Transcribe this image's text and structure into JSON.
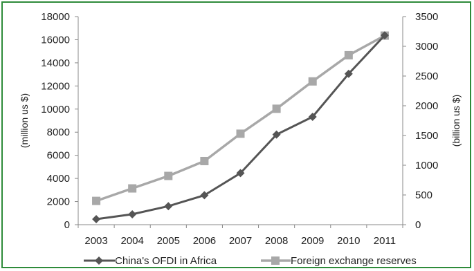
{
  "chart_data": {
    "type": "line",
    "categories": [
      "2003",
      "2004",
      "2005",
      "2006",
      "2007",
      "2008",
      "2009",
      "2010",
      "2011"
    ],
    "series": [
      {
        "name": "China's OFDI in Africa",
        "axis": "left",
        "color": "#555555",
        "marker": "diamond",
        "values": [
          480,
          900,
          1600,
          2550,
          4460,
          7800,
          9330,
          13050,
          16380
        ]
      },
      {
        "name": "Foreign exchange reserves",
        "axis": "right",
        "color": "#a8a8a8",
        "marker": "square",
        "values": [
          400,
          610,
          820,
          1070,
          1530,
          1950,
          2410,
          2850,
          3180
        ]
      }
    ],
    "y_left": {
      "label": "(million us $)",
      "ylim": [
        0,
        18000
      ],
      "ticks": [
        "0",
        "2000",
        "4000",
        "6000",
        "8000",
        "10000",
        "12000",
        "14000",
        "16000",
        "18000"
      ]
    },
    "y_right": {
      "label": "(billion us $)",
      "ylim": [
        0,
        3500
      ],
      "ticks": [
        "0",
        "500",
        "1000",
        "1500",
        "2000",
        "2500",
        "3000",
        "3500"
      ]
    },
    "grid": false,
    "legend": "bottom"
  }
}
